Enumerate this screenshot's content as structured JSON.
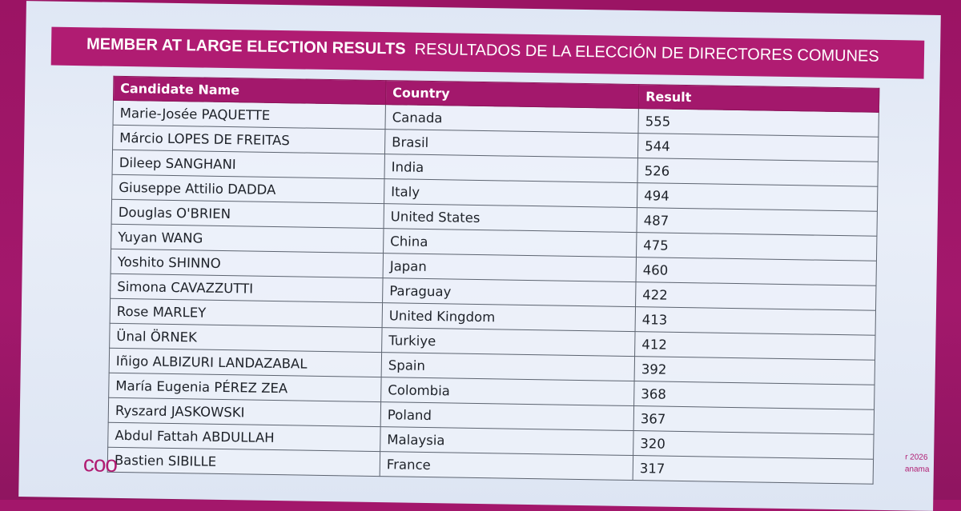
{
  "title": {
    "bold": "MEMBER AT LARGE ELECTION RESULTS",
    "regular": "RESULTADOS DE LA ELECCIÓN DE DIRECTORES COMUNES"
  },
  "table": {
    "headers": [
      "Candidate Name",
      "Country",
      "Result"
    ],
    "rows": [
      [
        "Marie-Josée PAQUETTE",
        "Canada",
        "555"
      ],
      [
        "Márcio LOPES DE FREITAS",
        "Brasil",
        "544"
      ],
      [
        "Dileep SANGHANI",
        "India",
        "526"
      ],
      [
        "Giuseppe Attilio DADDA",
        "Italy",
        "494"
      ],
      [
        "Douglas O'BRIEN",
        "United States",
        "487"
      ],
      [
        "Yuyan WANG",
        "China",
        "475"
      ],
      [
        "Yoshito SHINNO",
        "Japan",
        "460"
      ],
      [
        "Simona CAVAZZUTTI",
        "Paraguay",
        "422"
      ],
      [
        "Rose MARLEY",
        "United Kingdom",
        "413"
      ],
      [
        "Ünal ÖRNEK",
        "Turkiye",
        "412"
      ],
      [
        "Iñigo ALBIZURI LANDAZABAL",
        "Spain",
        "392"
      ],
      [
        "María Eugenia PÉREZ ZEA",
        "Colombia",
        "368"
      ],
      [
        "Ryszard JASKOWSKI",
        "Poland",
        "367"
      ],
      [
        "Abdul Fattah ABDULLAH",
        "Malaysia",
        "320"
      ],
      [
        "Bastien SIBILLE",
        "France",
        "317"
      ]
    ]
  },
  "footer": {
    "logo": "coo",
    "line1": "r 2026",
    "line2": "anama"
  },
  "colors": {
    "brand": "#a3186c",
    "slide_bg": "#e4eaf6",
    "text": "#1e2229"
  }
}
